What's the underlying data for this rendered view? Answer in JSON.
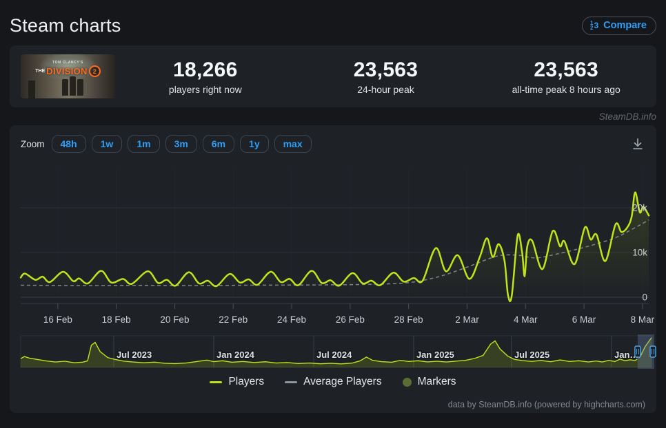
{
  "header": {
    "title": "Steam charts",
    "compare_label": "Compare"
  },
  "stats": {
    "game": {
      "publisher": "TOM CLANCY'S",
      "the": "THE",
      "name": "DIVISION",
      "number": "2"
    },
    "items": [
      {
        "value": "18,266",
        "label": "players right now"
      },
      {
        "value": "23,563",
        "label": "24-hour peak"
      },
      {
        "value": "23,563",
        "label": "all-time peak 8 hours ago"
      }
    ]
  },
  "watermark": "SteamDB.info",
  "toolbar": {
    "zoom_label": "Zoom",
    "buttons": [
      {
        "label": "48h",
        "selected": true
      },
      {
        "label": "1w",
        "selected": false
      },
      {
        "label": "1m",
        "selected": false
      },
      {
        "label": "3m",
        "selected": false
      },
      {
        "label": "6m",
        "selected": false
      },
      {
        "label": "1y",
        "selected": false
      },
      {
        "label": "max",
        "selected": false
      }
    ]
  },
  "colors": {
    "players": "#bfe51a",
    "average": "#8f969d",
    "markers": "#5b6d33",
    "accent_blue": "#2f9ff5",
    "grid": "#2f343b",
    "axis_label": "#c9ced4"
  },
  "chart_data": {
    "type": "line",
    "title": "",
    "main": {
      "ylim": [
        0,
        29000
      ],
      "yticks": [
        {
          "label": "0",
          "value": 0
        },
        {
          "label": "10k",
          "value": 10000
        },
        {
          "label": "20k",
          "value": 20000
        }
      ],
      "xticks": [
        {
          "label": "16 Feb",
          "day": 1.27
        },
        {
          "label": "18 Feb",
          "day": 3.27
        },
        {
          "label": "20 Feb",
          "day": 5.27
        },
        {
          "label": "22 Feb",
          "day": 7.27
        },
        {
          "label": "24 Feb",
          "day": 9.27
        },
        {
          "label": "26 Feb",
          "day": 11.27
        },
        {
          "label": "28 Feb",
          "day": 13.27
        },
        {
          "label": "2 Mar",
          "day": 15.27
        },
        {
          "label": "4 Mar",
          "day": 17.27
        },
        {
          "label": "6 Mar",
          "day": 19.27
        },
        {
          "label": "8 Mar",
          "day": 21.27
        }
      ],
      "series": [
        {
          "name": "Players",
          "dash": false,
          "points": [
            [
              0.0,
              4400
            ],
            [
              0.15,
              5300
            ],
            [
              0.5,
              3900
            ],
            [
              0.75,
              4600
            ],
            [
              1.0,
              3400
            ],
            [
              1.45,
              5700
            ],
            [
              1.8,
              3600
            ],
            [
              2.0,
              4200
            ],
            [
              2.3,
              3100
            ],
            [
              2.75,
              5900
            ],
            [
              3.1,
              3300
            ],
            [
              3.5,
              4100
            ],
            [
              3.8,
              3000
            ],
            [
              4.35,
              5800
            ],
            [
              4.7,
              3200
            ],
            [
              5.0,
              3900
            ],
            [
              5.3,
              2600
            ],
            [
              5.75,
              5600
            ],
            [
              6.1,
              3100
            ],
            [
              6.4,
              3700
            ],
            [
              6.7,
              2500
            ],
            [
              7.15,
              5200
            ],
            [
              7.5,
              3300
            ],
            [
              7.8,
              4000
            ],
            [
              8.1,
              2800
            ],
            [
              8.55,
              5700
            ],
            [
              8.9,
              3400
            ],
            [
              9.2,
              4100
            ],
            [
              9.5,
              2700
            ],
            [
              9.95,
              5900
            ],
            [
              10.3,
              3200
            ],
            [
              10.6,
              3800
            ],
            [
              10.9,
              2600
            ],
            [
              11.35,
              5400
            ],
            [
              11.7,
              3100
            ],
            [
              12.0,
              3700
            ],
            [
              12.3,
              2700
            ],
            [
              12.75,
              5500
            ],
            [
              13.1,
              3500
            ],
            [
              13.45,
              4300
            ],
            [
              13.75,
              3700
            ],
            [
              14.2,
              11000
            ],
            [
              14.55,
              5800
            ],
            [
              14.95,
              9400
            ],
            [
              15.35,
              4100
            ],
            [
              15.7,
              8900
            ],
            [
              15.95,
              13200
            ],
            [
              16.15,
              9000
            ],
            [
              16.35,
              11900
            ],
            [
              16.55,
              8200
            ],
            [
              16.67,
              500
            ],
            [
              16.8,
              400
            ],
            [
              17.0,
              13800
            ],
            [
              17.15,
              10200
            ],
            [
              17.24,
              4700
            ],
            [
              17.33,
              11400
            ],
            [
              17.5,
              12600
            ],
            [
              17.85,
              6300
            ],
            [
              18.2,
              14800
            ],
            [
              18.45,
              11400
            ],
            [
              18.6,
              12500
            ],
            [
              18.95,
              7400
            ],
            [
              19.3,
              15600
            ],
            [
              19.5,
              12900
            ],
            [
              19.7,
              14000
            ],
            [
              20.0,
              8100
            ],
            [
              20.35,
              16300
            ],
            [
              20.55,
              14600
            ],
            [
              20.75,
              15600
            ],
            [
              20.9,
              18000
            ],
            [
              21.02,
              23450
            ],
            [
              21.18,
              19000
            ],
            [
              21.3,
              20200
            ],
            [
              21.49,
              18270
            ]
          ]
        },
        {
          "name": "Average Players",
          "dash": true,
          "points": [
            [
              0,
              2700
            ],
            [
              2,
              2600
            ],
            [
              4,
              2650
            ],
            [
              6,
              2600
            ],
            [
              8,
              2700
            ],
            [
              10,
              2750
            ],
            [
              12,
              2900
            ],
            [
              13.3,
              3300
            ],
            [
              14.3,
              4600
            ],
            [
              15.3,
              6800
            ],
            [
              16.3,
              9200
            ],
            [
              17.0,
              9400
            ],
            [
              17.6,
              8800
            ],
            [
              18.3,
              9600
            ],
            [
              19.3,
              11200
            ],
            [
              20.3,
              13200
            ],
            [
              21.0,
              15500
            ],
            [
              21.49,
              17300
            ]
          ]
        }
      ]
    },
    "navigator": {
      "ylim": [
        0,
        25000
      ],
      "xticks": [
        {
          "label": "Jul 2023",
          "pos": 0.1475
        },
        {
          "label": "Jan 2024",
          "pos": 0.306
        },
        {
          "label": "Jul 2024",
          "pos": 0.4645
        },
        {
          "label": "Jan 2025",
          "pos": 0.6229
        },
        {
          "label": "Jul 2025",
          "pos": 0.7781
        },
        {
          "label": "Jan…",
          "pos": 0.9366
        }
      ],
      "selection": {
        "from": 0.978,
        "to": 1.0
      },
      "points": [
        [
          0.0,
          7000
        ],
        [
          0.006,
          8600
        ],
        [
          0.015,
          7200
        ],
        [
          0.025,
          6400
        ],
        [
          0.04,
          5200
        ],
        [
          0.055,
          4300
        ],
        [
          0.07,
          4900
        ],
        [
          0.085,
          3700
        ],
        [
          0.098,
          4200
        ],
        [
          0.106,
          5200
        ],
        [
          0.112,
          17500
        ],
        [
          0.118,
          19800
        ],
        [
          0.126,
          12500
        ],
        [
          0.138,
          7800
        ],
        [
          0.15,
          6300
        ],
        [
          0.163,
          5000
        ],
        [
          0.178,
          4300
        ],
        [
          0.195,
          3700
        ],
        [
          0.212,
          4200
        ],
        [
          0.228,
          3300
        ],
        [
          0.245,
          3000
        ],
        [
          0.262,
          3500
        ],
        [
          0.278,
          4600
        ],
        [
          0.295,
          5800
        ],
        [
          0.306,
          4600
        ],
        [
          0.32,
          5300
        ],
        [
          0.335,
          4100
        ],
        [
          0.352,
          4700
        ],
        [
          0.37,
          3900
        ],
        [
          0.388,
          4500
        ],
        [
          0.405,
          3500
        ],
        [
          0.422,
          3900
        ],
        [
          0.44,
          3100
        ],
        [
          0.458,
          3500
        ],
        [
          0.475,
          2900
        ],
        [
          0.492,
          3300
        ],
        [
          0.508,
          2800
        ],
        [
          0.525,
          3400
        ],
        [
          0.538,
          5200
        ],
        [
          0.548,
          8200
        ],
        [
          0.558,
          5600
        ],
        [
          0.572,
          4600
        ],
        [
          0.588,
          4100
        ],
        [
          0.602,
          5600
        ],
        [
          0.615,
          4700
        ],
        [
          0.63,
          5300
        ],
        [
          0.645,
          4400
        ],
        [
          0.66,
          4900
        ],
        [
          0.675,
          4300
        ],
        [
          0.69,
          5000
        ],
        [
          0.705,
          5600
        ],
        [
          0.72,
          7200
        ],
        [
          0.733,
          9500
        ],
        [
          0.745,
          18500
        ],
        [
          0.752,
          21000
        ],
        [
          0.76,
          14500
        ],
        [
          0.772,
          9000
        ],
        [
          0.782,
          6500
        ],
        [
          0.795,
          5400
        ],
        [
          0.81,
          4800
        ],
        [
          0.825,
          5500
        ],
        [
          0.84,
          4500
        ],
        [
          0.855,
          5900
        ],
        [
          0.87,
          4700
        ],
        [
          0.885,
          5300
        ],
        [
          0.9,
          4300
        ],
        [
          0.912,
          5100
        ],
        [
          0.922,
          4300
        ],
        [
          0.932,
          5600
        ],
        [
          0.942,
          4700
        ],
        [
          0.95,
          6600
        ],
        [
          0.958,
          5300
        ],
        [
          0.966,
          6100
        ],
        [
          0.974,
          5400
        ],
        [
          0.982,
          8500
        ],
        [
          0.99,
          16500
        ],
        [
          1.0,
          23500
        ]
      ]
    }
  },
  "legend": [
    {
      "label": "Players",
      "type": "line"
    },
    {
      "label": "Average Players",
      "type": "line"
    },
    {
      "label": "Markers",
      "type": "circle"
    }
  ],
  "footer": "data by SteamDB.info (powered by highcharts.com)"
}
